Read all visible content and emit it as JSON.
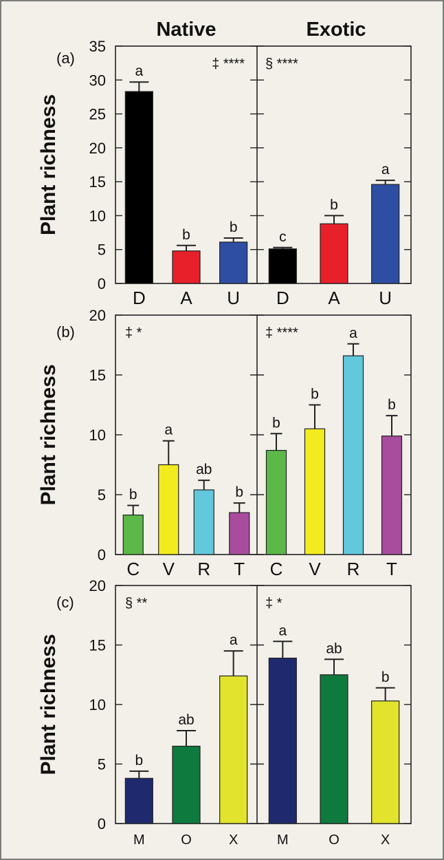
{
  "headers": {
    "native": "Native",
    "exotic": "Exotic"
  },
  "ylabel": "Plant richness",
  "chart_data": [
    {
      "type": "bar",
      "panel_label": "(a)",
      "ylim": [
        0,
        35
      ],
      "yticks": [
        0,
        5,
        10,
        15,
        20,
        25,
        30,
        35
      ],
      "categories": [
        "D",
        "A",
        "U"
      ],
      "colors": [
        "#000000",
        "#e8202a",
        "#2e4ea3"
      ],
      "native": {
        "values": [
          28.3,
          4.8,
          6.1
        ],
        "errors": [
          1.4,
          0.8,
          0.6
        ],
        "letters": [
          "a",
          "b",
          "b"
        ],
        "annotation": "‡ ****"
      },
      "exotic": {
        "values": [
          5.1,
          8.8,
          14.6
        ],
        "errors": [
          0.2,
          1.2,
          0.6
        ],
        "letters": [
          "c",
          "b",
          "a"
        ],
        "annotation": "§ ****"
      }
    },
    {
      "type": "bar",
      "panel_label": "(b)",
      "ylim": [
        0,
        20
      ],
      "yticks": [
        0,
        5,
        10,
        15,
        20
      ],
      "categories": [
        "C",
        "V",
        "R",
        "T"
      ],
      "colors": [
        "#5cb849",
        "#f2ec1f",
        "#62c8dc",
        "#a84c9e"
      ],
      "native": {
        "values": [
          3.3,
          7.5,
          5.4,
          3.5
        ],
        "errors": [
          0.8,
          2.0,
          0.8,
          0.8
        ],
        "letters": [
          "b",
          "a",
          "ab",
          "b"
        ],
        "annotation": "‡ *"
      },
      "exotic": {
        "values": [
          8.7,
          10.5,
          16.6,
          9.9
        ],
        "errors": [
          1.4,
          2.0,
          1.0,
          1.7
        ],
        "letters": [
          "b",
          "b",
          "a",
          "b"
        ],
        "annotation": "‡ ****"
      }
    },
    {
      "type": "bar",
      "panel_label": "(c)",
      "ylim": [
        0,
        20
      ],
      "yticks": [
        0,
        5,
        10,
        15,
        20
      ],
      "categories": [
        "M",
        "O",
        "X"
      ],
      "colors": [
        "#1f2a6e",
        "#0f7a3d",
        "#e2e32c"
      ],
      "native": {
        "values": [
          3.8,
          6.5,
          12.4
        ],
        "errors": [
          0.6,
          1.3,
          2.1
        ],
        "letters": [
          "b",
          "ab",
          "a"
        ],
        "annotation": "§ **"
      },
      "exotic": {
        "values": [
          13.9,
          12.5,
          10.3
        ],
        "errors": [
          1.4,
          1.3,
          1.1
        ],
        "letters": [
          "a",
          "ab",
          "b"
        ],
        "annotation": "‡ *"
      }
    }
  ]
}
